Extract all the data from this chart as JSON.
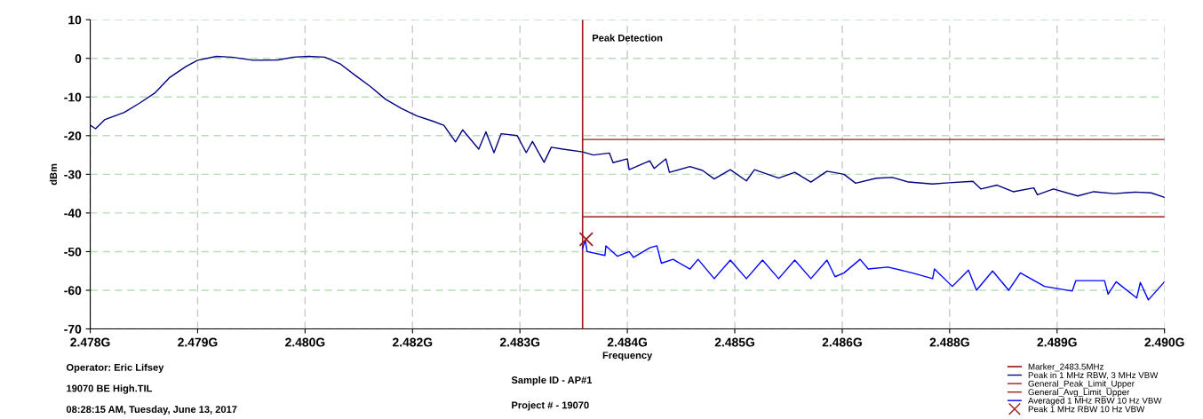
{
  "chart_data": {
    "type": "line",
    "subtitle": "Peak Detection",
    "xlabel": "Frequency",
    "ylabel": "dBm",
    "xlim": [
      2.478,
      2.49
    ],
    "ylim": [
      -70,
      10
    ],
    "xticks": [
      {
        "value": 2.478,
        "label": "2.478G"
      },
      {
        "value": 2.4792,
        "label": "2.479G"
      },
      {
        "value": 2.4804,
        "label": "2.480G"
      },
      {
        "value": 2.4816,
        "label": "2.482G"
      },
      {
        "value": 2.4828,
        "label": "2.483G"
      },
      {
        "value": 2.484,
        "label": "2.484G"
      },
      {
        "value": 2.4852,
        "label": "2.485G"
      },
      {
        "value": 2.4864,
        "label": "2.486G"
      },
      {
        "value": 2.4876,
        "label": "2.488G"
      },
      {
        "value": 2.4888,
        "label": "2.489G"
      },
      {
        "value": 2.49,
        "label": "2.490G"
      }
    ],
    "yticks": [
      -70,
      -60,
      -50,
      -40,
      -30,
      -20,
      -10,
      0,
      10
    ],
    "grid": true,
    "legend": "bottom right",
    "ref_lines": [
      {
        "axis": "x",
        "value": 2.4835,
        "label": "Marker_2483.5MHz",
        "color": "#9b1c1c",
        "line_style": "solid"
      }
    ],
    "series": [
      {
        "name": "Peak in 1 MHz RBW, 3 MHz VBW",
        "color": "#000080",
        "x": [
          2.478,
          2.47806,
          2.47816,
          2.47838,
          2.47855,
          2.47872,
          2.47889,
          2.47907,
          2.4792,
          2.47941,
          2.47958,
          2.47982,
          2.4801,
          2.48027,
          2.48044,
          2.48062,
          2.48079,
          2.48096,
          2.48113,
          2.4813,
          2.48148,
          2.48165,
          2.48182,
          2.48195,
          2.48208,
          2.48216,
          2.48234,
          2.48242,
          2.48251,
          2.48259,
          2.48277,
          2.48287,
          2.48294,
          2.48307,
          2.48315,
          2.48328,
          2.4835,
          2.48362,
          2.4838,
          2.48384,
          2.484,
          2.48402,
          2.48425,
          2.4843,
          2.48443,
          2.48447,
          2.4847,
          2.48484,
          2.48497,
          2.48515,
          2.48533,
          2.48542,
          2.48569,
          2.48587,
          2.48605,
          2.48623,
          2.48642,
          2.48655,
          2.48678,
          2.48696,
          2.48714,
          2.48741,
          2.48759,
          2.48786,
          2.48795,
          2.48813,
          2.48831,
          2.48854,
          2.48858,
          2.48876,
          2.48903,
          2.48921,
          2.48944,
          2.48967,
          2.48985,
          2.48998,
          2.49
        ],
        "values": [
          -17.3,
          -18.2,
          -15.9,
          -14,
          -11.6,
          -9.0,
          -4.9,
          -2.1,
          -0.5,
          0.5,
          0.3,
          -0.5,
          -0.4,
          0.3,
          0.5,
          0.3,
          -1.4,
          -4.4,
          -7.3,
          -10.6,
          -13,
          -14.9,
          -16.2,
          -17.3,
          -21.6,
          -18.5,
          -23.5,
          -19,
          -24.4,
          -19.5,
          -20,
          -24.4,
          -21.5,
          -26.9,
          -23,
          -23.5,
          -24.2,
          -25,
          -24.5,
          -27,
          -26,
          -28.8,
          -26.5,
          -28.5,
          -26,
          -29.5,
          -28,
          -29,
          -31.2,
          -28.8,
          -31.7,
          -28.8,
          -31,
          -29.5,
          -32,
          -29.2,
          -30,
          -32.3,
          -31,
          -30.8,
          -32,
          -32.5,
          -32.2,
          -31.8,
          -33.8,
          -32.8,
          -34.5,
          -33.5,
          -35.3,
          -33.8,
          -35.6,
          -34.5,
          -35,
          -34.6,
          -34.8,
          -35.8,
          -36
        ]
      },
      {
        "name": "General_Peak_Limit_Upper",
        "color": "#9b1c1c",
        "x": [
          2.4835,
          2.49
        ],
        "values": [
          -21,
          -21
        ]
      },
      {
        "name": "General_Avg_Limit_Upper",
        "color": "#9b1c1c",
        "x": [
          2.4835,
          2.49
        ],
        "values": [
          -41,
          -41
        ]
      },
      {
        "name": "Averaged 1 MHz RBW 10 Hz VBW",
        "color": "#0000ff",
        "x": [
          2.4835,
          2.48353,
          2.48355,
          2.48375,
          2.48376,
          2.48389,
          2.48402,
          2.48407,
          2.48425,
          2.48433,
          2.48438,
          2.48451,
          2.4847,
          2.48479,
          2.48497,
          2.48515,
          2.48533,
          2.48551,
          2.48569,
          2.48587,
          2.48605,
          2.48623,
          2.48632,
          2.48642,
          2.4866,
          2.48669,
          2.48691,
          2.48718,
          2.48741,
          2.48743,
          2.48763,
          2.48781,
          2.4879,
          2.48808,
          2.48826,
          2.48839,
          2.48866,
          2.48897,
          2.48901,
          2.48933,
          2.48937,
          2.48946,
          2.48969,
          2.48973,
          2.48982,
          2.49
        ],
        "values": [
          -49.2,
          -47,
          -50,
          -51,
          -48.5,
          -51.2,
          -50,
          -51.5,
          -49,
          -48.5,
          -53,
          -52,
          -54.5,
          -52,
          -57,
          -52.2,
          -57,
          -52.2,
          -57,
          -52.2,
          -57,
          -52.2,
          -56.5,
          -55.5,
          -52,
          -54.5,
          -54,
          -55.5,
          -57,
          -54.5,
          -59,
          -54.8,
          -60,
          -55,
          -60,
          -55.5,
          -59,
          -60.2,
          -57.5,
          -57.5,
          -61,
          -57.8,
          -62,
          -58,
          -62.5,
          -57.8
        ]
      },
      {
        "name": "Peak 1 MHz RBW 10 Hz VBW",
        "type": "scatter",
        "marker": "cross",
        "color": "#9b1c1c",
        "x": [
          2.48354
        ],
        "values": [
          -46.8
        ]
      }
    ],
    "annotations": [
      "Operator: Eric Lifsey",
      "19070 BE High.TIL",
      "08:28:15 AM, Tuesday, June 13, 2017",
      "Sample ID - AP#1",
      "Project # - 19070"
    ]
  }
}
